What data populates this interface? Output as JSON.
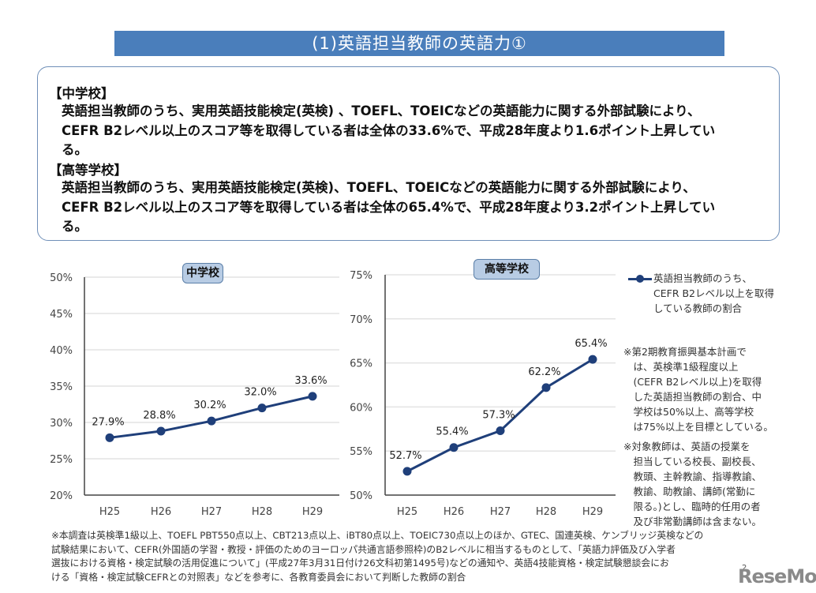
{
  "title": "(1)英語担当教師の英語力①",
  "summary": {
    "junior_high": {
      "heading": "【中学校】",
      "lines": [
        "英語担当教師のうち、実用英語技能検定(英検) 、TOEFL、TOEICなどの英語能力に関する外部試験により、",
        "CEFR B2レベル以上のスコア等を取得している者は全体の33.6%で、平成28年度より1.6ポイント上昇してい",
        "る。"
      ]
    },
    "high_school": {
      "heading": "【高等学校】",
      "lines": [
        "英語担当教師のうち、実用英語技能検定(英検)、TOEFL、TOEICなどの英語能力に関する外部試験により、",
        "CEFR B2レベル以上のスコア等を取得している者は全体の65.4%で、平成28年度より3.2ポイント上昇してい",
        "る。"
      ]
    }
  },
  "chart_data": [
    {
      "type": "line",
      "title": "中学校",
      "categories": [
        "H25",
        "H26",
        "H27",
        "H28",
        "H29"
      ],
      "series": [
        {
          "name": "英語担当教師のうち、CEFR B2レベル以上を取得している教師の割合",
          "values": [
            27.9,
            28.8,
            30.2,
            32.0,
            33.6
          ]
        }
      ],
      "data_labels": [
        "27.9%",
        "28.8%",
        "30.2%",
        "32.0%",
        "33.6%"
      ],
      "ylim": [
        20,
        50
      ],
      "yticks": [
        20,
        25,
        30,
        35,
        40,
        45,
        50
      ],
      "ytick_labels": [
        "20%",
        "25%",
        "30%",
        "35%",
        "40%",
        "45%",
        "50%"
      ],
      "xlabel": "",
      "ylabel": "",
      "grid": true,
      "color": "#1f3f7a"
    },
    {
      "type": "line",
      "title": "高等学校",
      "categories": [
        "H25",
        "H26",
        "H27",
        "H28",
        "H29"
      ],
      "series": [
        {
          "name": "英語担当教師のうち、CEFR B2レベル以上を取得している教師の割合",
          "values": [
            52.7,
            55.4,
            57.3,
            62.2,
            65.4
          ]
        }
      ],
      "data_labels": [
        "52.7%",
        "55.4%",
        "57.3%",
        "62.2%",
        "65.4%"
      ],
      "ylim": [
        50,
        75
      ],
      "yticks": [
        50,
        55,
        60,
        65,
        70,
        75
      ],
      "ytick_labels": [
        "50%",
        "55%",
        "60%",
        "65%",
        "70%",
        "75%"
      ],
      "xlabel": "",
      "ylabel": "",
      "grid": true,
      "color": "#1f3f7a"
    }
  ],
  "legend": {
    "lines": [
      "英語担当教師のうち、",
      "CEFR B2レベル以上を取得",
      "している教師の割合"
    ],
    "placement": "right"
  },
  "notes": {
    "target_note": [
      "※第2期教育振興基本計画で",
      "　は、英検準1級程度以上",
      "　(CEFR B2レベル以上)を取得",
      "　した英語担当教師の割合、中",
      "　学校は50%以上、高等学校",
      "　は75%以上を目標としている。"
    ],
    "teacher_note": [
      "※対象教師は、英語の授業を",
      "　担当している校長、副校長、",
      "　教頭、主幹教諭、指導教諭、",
      "　教諭、助教諭、講師(常勤に",
      "　限る。)とし、臨時的任用の者",
      "　及び非常勤講師は含まない。"
    ]
  },
  "footnote": [
    "※本調査は英検準1級以上、TOEFL PBT550点以上、CBT213点以上、iBT80点以上、TOEIC730点以上のほか、GTEC、国連英検、ケンブリッジ英検などの",
    "試験結果において、CEFR(外国語の学習・教授・評価のためのヨーロッパ共通言語参照枠)のB2レベルに相当するものとして、「英語力評価及び入学者",
    "選抜における資格・検定試験の活用促進について」(平成27年3月31日付け26文科初第1495号)などの通知や、英語4技能資格・検定試験懇談会にお",
    "ける「資格・検定試験CEFRとの対照表」などを参考に、各教育委員会において判断した教師の割合"
  ],
  "page_number": "2",
  "watermark": "ReseMom"
}
